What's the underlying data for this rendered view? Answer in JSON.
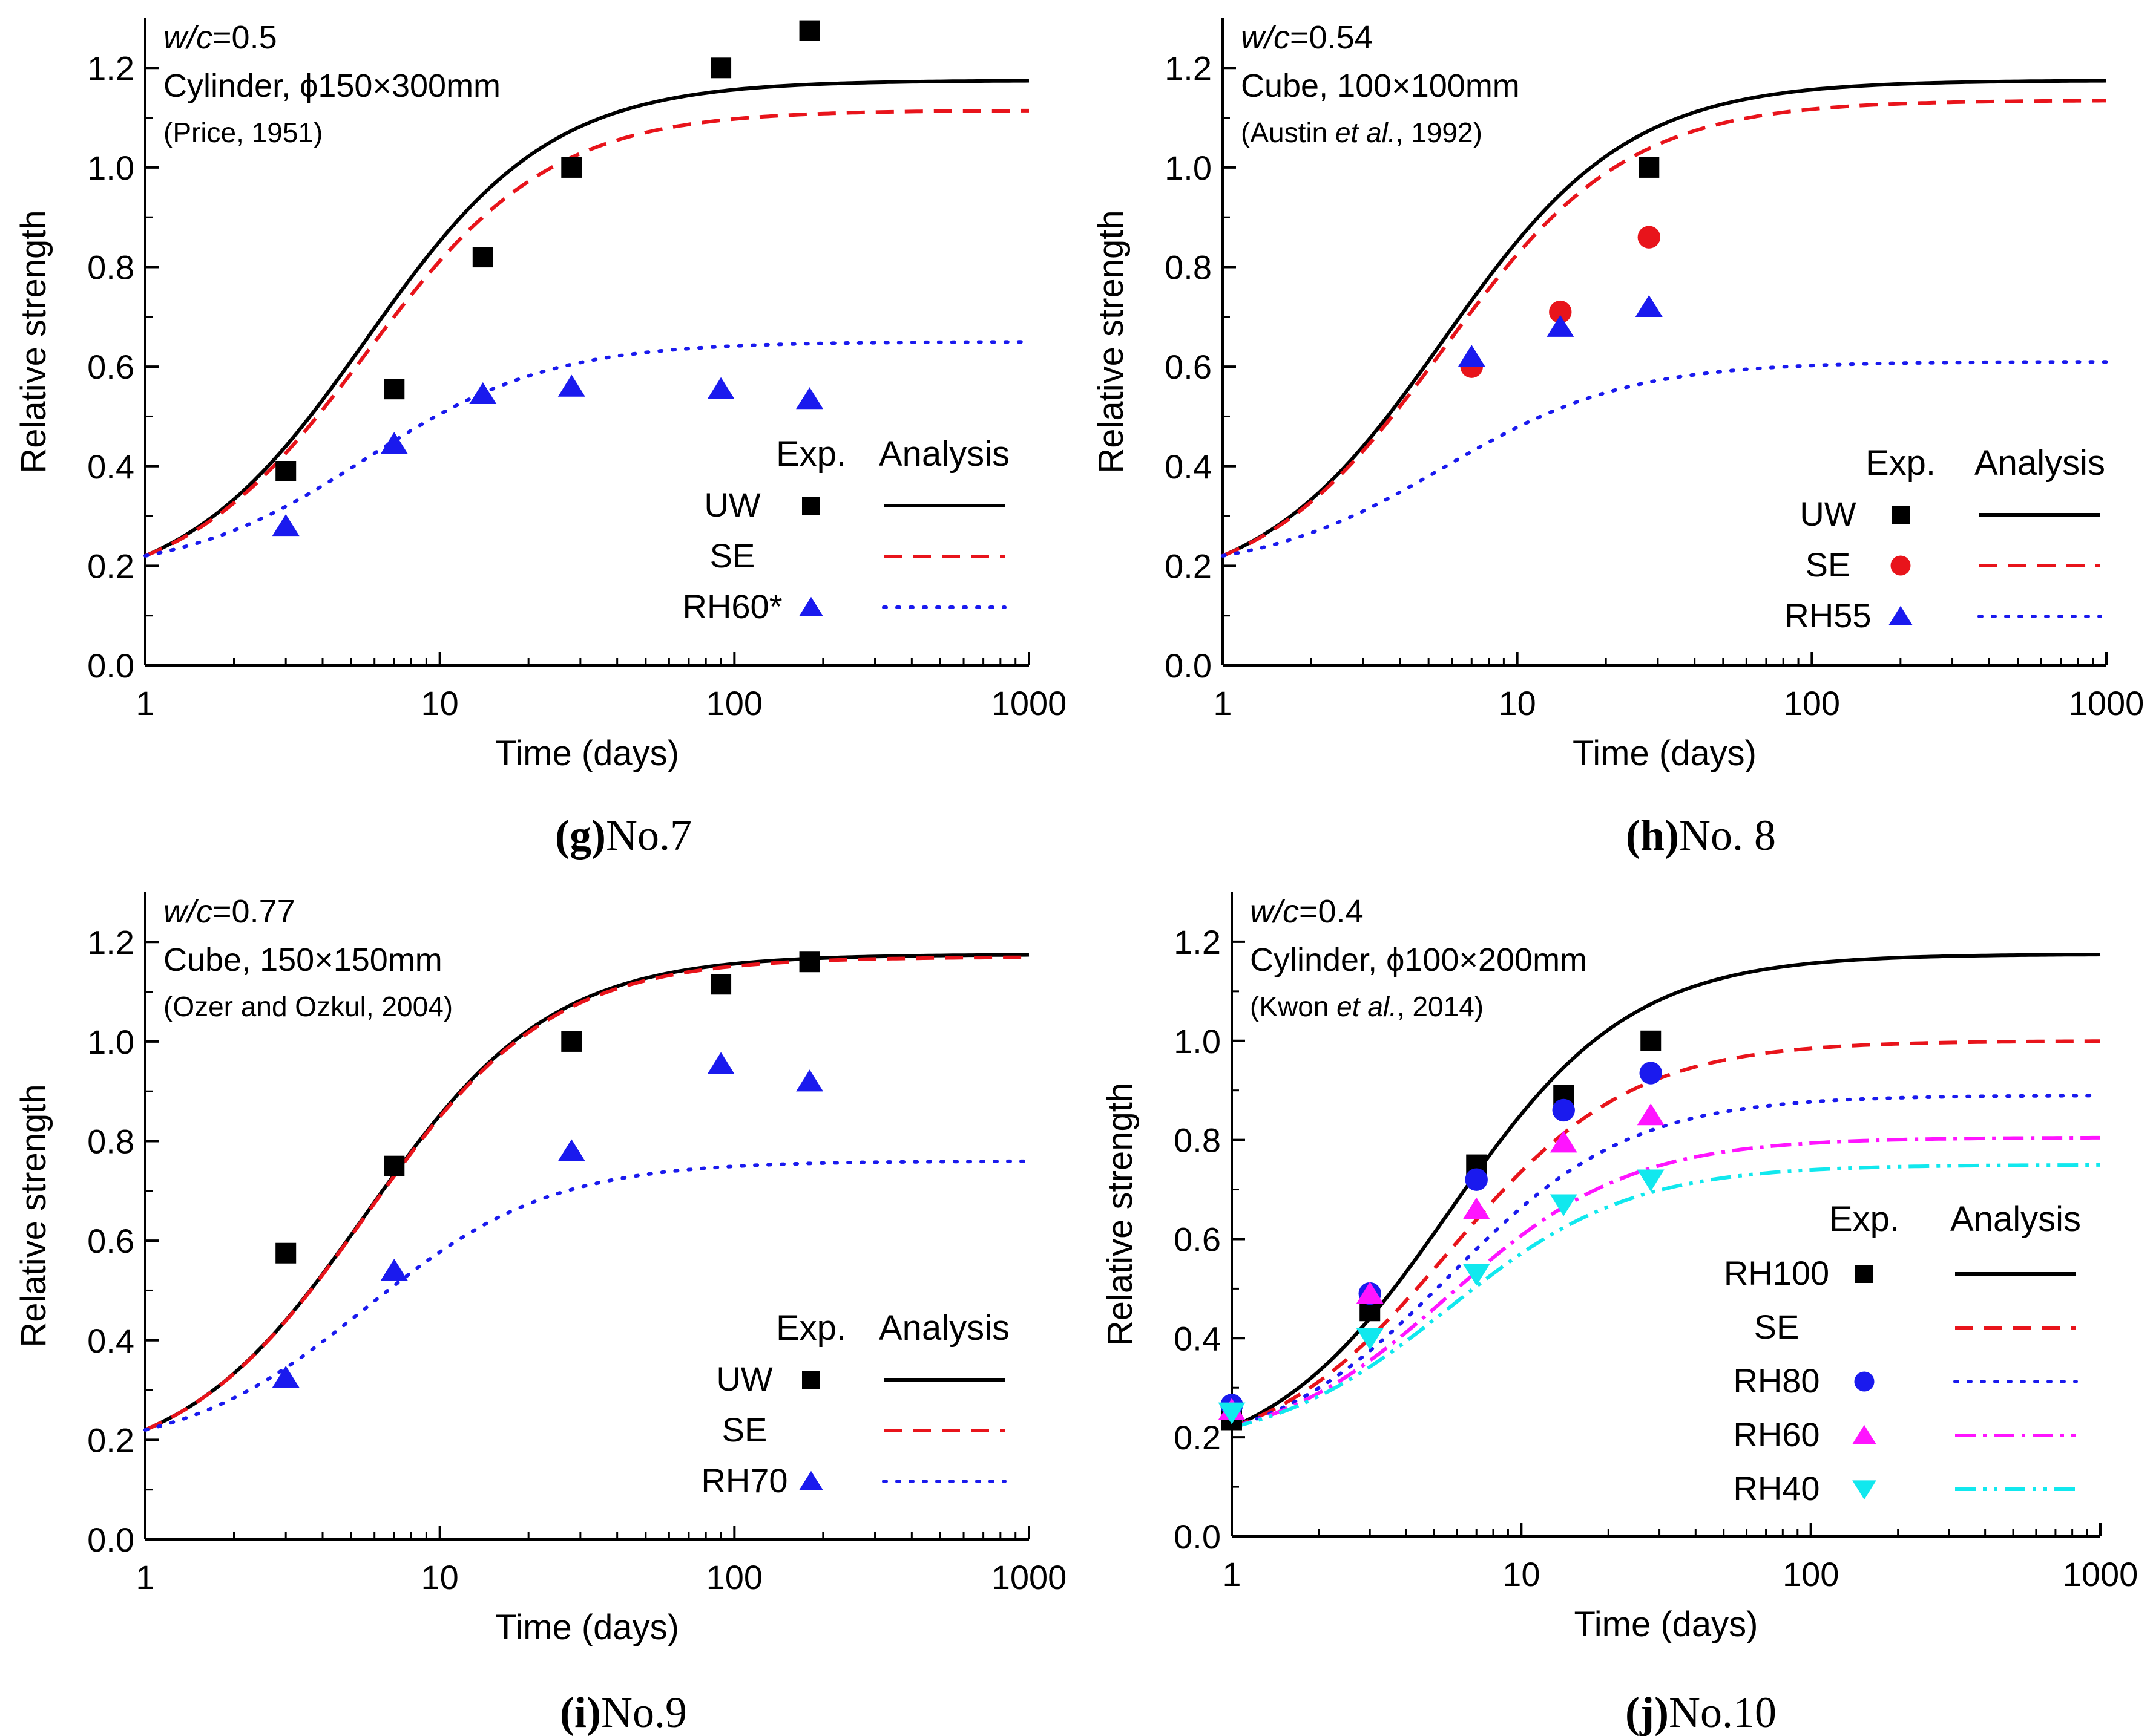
{
  "colors": {
    "black": "#000000",
    "red": "#e8141b",
    "blue": "#1a1aee",
    "magenta": "#ff14ff",
    "cyan": "#11e8ee"
  },
  "chart_data": [
    {
      "id": "g",
      "type": "scatter+line",
      "xscale": "log",
      "xlim": [
        1,
        1000
      ],
      "ylim": [
        0.0,
        1.3
      ],
      "xticks": [
        "1",
        "10",
        "100",
        "1000"
      ],
      "yticks": [
        "0.0",
        "0.2",
        "0.4",
        "0.6",
        "0.8",
        "1.0",
        "1.2"
      ],
      "xlabel": "Time (days)",
      "ylabel": "Relative strength",
      "caption_letter": "(g)",
      "caption_text": "No.7",
      "annotation": {
        "wc_label": "w/c",
        "wc_value": "=0.5",
        "line2": "Cylinder, ϕ150×300mm",
        "line3": "(Price, 1951)"
      },
      "legend": {
        "exp_header": "Exp.",
        "ana_header": "Analysis",
        "entries": [
          "UW",
          "SE",
          "RH60*"
        ]
      },
      "series": [
        {
          "name": "UW",
          "marker": "square",
          "color": "#000000",
          "dash": "solid",
          "exp_x": [
            3,
            7,
            14,
            28,
            90,
            180
          ],
          "exp_y": [
            0.39,
            0.555,
            0.82,
            1.0,
            1.2,
            1.275
          ],
          "curve": {
            "s": 0.25,
            "ult": 1.175
          }
        },
        {
          "name": "SE",
          "marker": "none",
          "color": "#e8141b",
          "dash": "dashed",
          "curve": {
            "s": 0.22,
            "ult": 1.115
          }
        },
        {
          "name": "RH60*",
          "marker": "triangle",
          "color": "#1a1aee",
          "dash": "dotted",
          "exp_x": [
            3,
            7,
            14,
            28,
            90,
            180
          ],
          "exp_y": [
            0.28,
            0.445,
            0.545,
            0.56,
            0.555,
            0.535
          ],
          "curve": {
            "s": 0.35,
            "ult": 0.65
          }
        }
      ]
    },
    {
      "id": "h",
      "type": "scatter+line",
      "xscale": "log",
      "xlim": [
        1,
        1000
      ],
      "ylim": [
        0.0,
        1.3
      ],
      "xticks": [
        "1",
        "10",
        "100",
        "1000"
      ],
      "yticks": [
        "0.0",
        "0.2",
        "0.4",
        "0.6",
        "0.8",
        "1.0",
        "1.2"
      ],
      "xlabel": "Time (days)",
      "ylabel": "Relative strength",
      "caption_letter": "(h)",
      "caption_text": "No. 8",
      "annotation": {
        "wc_label": "w/c",
        "wc_value": "=0.54",
        "line2": "Cube, 100×100mm",
        "line3_pre": "(Austin ",
        "line3_it": "et al.",
        "line3_post": ", 1992)"
      },
      "legend": {
        "exp_header": "Exp.",
        "ana_header": "Analysis",
        "entries": [
          "UW",
          "SE",
          "RH55"
        ]
      },
      "series": [
        {
          "name": "UW",
          "marker": "square",
          "color": "#000000",
          "dash": "solid",
          "exp_x": [
            28
          ],
          "exp_y": [
            1.0
          ],
          "curve": {
            "s": 0.25,
            "ult": 1.175
          }
        },
        {
          "name": "SE",
          "marker": "circle",
          "color": "#e8141b",
          "dash": "dashed",
          "exp_x": [
            7,
            14,
            28
          ],
          "exp_y": [
            0.6,
            0.71,
            0.86
          ],
          "curve": {
            "s": 0.235,
            "ult": 1.135
          }
        },
        {
          "name": "RH55",
          "marker": "triangle",
          "color": "#1a1aee",
          "dash": "dotted",
          "exp_x": [
            7,
            14,
            28
          ],
          "exp_y": [
            0.62,
            0.68,
            0.72
          ],
          "curve": {
            "s": 0.32,
            "ult": 0.61
          }
        }
      ]
    },
    {
      "id": "i",
      "type": "scatter+line",
      "xscale": "log",
      "xlim": [
        1,
        1000
      ],
      "ylim": [
        0.0,
        1.3
      ],
      "xticks": [
        "1",
        "10",
        "100",
        "1000"
      ],
      "yticks": [
        "0.0",
        "0.2",
        "0.4",
        "0.6",
        "0.8",
        "1.0",
        "1.2"
      ],
      "xlabel": "Time (days)",
      "ylabel": "Relative strength",
      "caption_letter": "(i)",
      "caption_text": "No.9",
      "annotation": {
        "wc_label": "w/c",
        "wc_value": "=0.77",
        "line2": "Cube, 150×150mm",
        "line3": "(Ozer and Ozkul, 2004)"
      },
      "legend": {
        "exp_header": "Exp.",
        "ana_header": "Analysis",
        "entries": [
          "UW",
          "SE",
          "RH70"
        ]
      },
      "series": [
        {
          "name": "UW",
          "marker": "square",
          "color": "#000000",
          "dash": "solid",
          "exp_x": [
            3,
            7,
            28,
            90,
            180
          ],
          "exp_y": [
            0.575,
            0.75,
            1.0,
            1.115,
            1.16
          ],
          "curve": {
            "s": 0.25,
            "ult": 1.175
          }
        },
        {
          "name": "SE",
          "marker": "none",
          "color": "#e8141b",
          "dash": "dashed",
          "curve": {
            "s": 0.25,
            "ult": 1.17
          }
        },
        {
          "name": "RH70",
          "marker": "triangle",
          "color": "#1a1aee",
          "dash": "dotted",
          "exp_x": [
            3,
            7,
            28,
            90,
            180
          ],
          "exp_y": [
            0.325,
            0.54,
            0.78,
            0.955,
            0.92
          ],
          "curve": {
            "s": 0.3,
            "ult": 0.76
          }
        }
      ]
    },
    {
      "id": "j",
      "type": "scatter+line",
      "xscale": "log",
      "xlim": [
        1,
        1000
      ],
      "ylim": [
        0.0,
        1.3
      ],
      "xticks": [
        "1",
        "10",
        "100",
        "1000"
      ],
      "yticks": [
        "0.0",
        "0.2",
        "0.4",
        "0.6",
        "0.8",
        "1.0",
        "1.2"
      ],
      "xlabel": "Time (days)",
      "ylabel": "Relative strength",
      "caption_letter": "(j)",
      "caption_text": "No.10",
      "annotation": {
        "wc_label": "w/c",
        "wc_value": "=0.4",
        "line2": "Cylinder, ϕ100×200mm",
        "line3_pre": "(Kwon ",
        "line3_it": "et al.",
        "line3_post": ", 2014)"
      },
      "legend": {
        "exp_header": "Exp.",
        "ana_header": "Analysis",
        "entries": [
          "RH100",
          "SE",
          "RH80",
          "RH60",
          "RH40"
        ]
      },
      "series": [
        {
          "name": "RH100",
          "marker": "square",
          "color": "#000000",
          "dash": "solid",
          "exp_x": [
            1,
            3,
            7,
            14,
            28
          ],
          "exp_y": [
            0.235,
            0.455,
            0.75,
            0.89,
            1.0
          ],
          "curve": {
            "s": 0.25,
            "ult": 1.175
          }
        },
        {
          "name": "SE",
          "marker": "none",
          "color": "#e8141b",
          "dash": "dashed",
          "curve": {
            "s": 0.24,
            "ult": 1.0
          }
        },
        {
          "name": "RH80",
          "marker": "circle",
          "color": "#1a1aee",
          "dash": "dotted",
          "exp_x": [
            1,
            3,
            7,
            14,
            28
          ],
          "exp_y": [
            0.265,
            0.49,
            0.72,
            0.86,
            0.935
          ],
          "curve": {
            "s": 0.25,
            "ult": 0.89
          }
        },
        {
          "name": "RH60",
          "marker": "triangle",
          "color": "#ff14ff",
          "dash": "dashdot",
          "exp_x": [
            1,
            3,
            7,
            14,
            28
          ],
          "exp_y": [
            0.255,
            0.49,
            0.66,
            0.795,
            0.85
          ],
          "curve": {
            "s": 0.27,
            "ult": 0.805
          }
        },
        {
          "name": "RH40",
          "marker": "triangle-down",
          "color": "#11e8ee",
          "dash": "dashdotdot",
          "exp_x": [
            1,
            3,
            7,
            14,
            28
          ],
          "exp_y": [
            0.25,
            0.4,
            0.53,
            0.67,
            0.72
          ],
          "curve": {
            "s": 0.28,
            "ult": 0.75
          }
        }
      ]
    }
  ]
}
